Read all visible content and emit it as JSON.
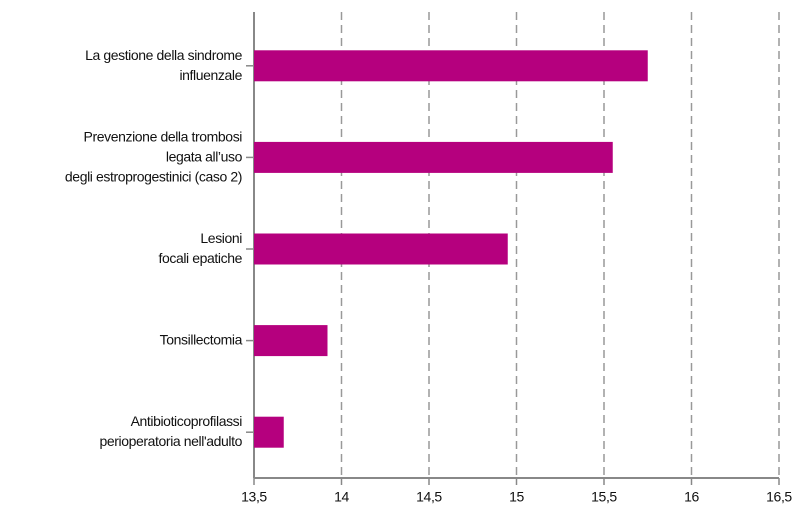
{
  "chart_data": {
    "type": "bar",
    "orientation": "horizontal",
    "categories": [
      "La gestione della sindrome\ninfluenzale",
      "Prevenzione della trombosi\nlegata all’uso\ndegli estroprogestinici (caso 2)",
      "Lesioni\nfocali epatiche",
      "Tonsillectomia",
      "Antibioticoprofilassi\nperioperatoria nell'adulto"
    ],
    "values": [
      15.75,
      15.55,
      14.95,
      13.92,
      13.67
    ],
    "color": "#b5007e",
    "xlim": [
      13.5,
      16.5
    ],
    "xticks": [
      {
        "value": 13.5,
        "label": "13,5"
      },
      14,
      {
        "value": 14.5,
        "label": "14,5"
      },
      15,
      {
        "value": 15.5,
        "label": "15,5"
      },
      16,
      {
        "value": 16.5,
        "label": "16,5"
      }
    ],
    "grid": true
  }
}
